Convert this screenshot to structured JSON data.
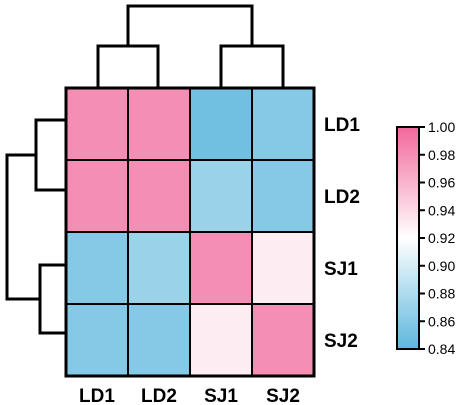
{
  "chart_data": {
    "type": "heatmap",
    "title": "",
    "rows": [
      "LD1",
      "LD2",
      "SJ1",
      "SJ2"
    ],
    "columns": [
      "LD1",
      "LD2",
      "SJ1",
      "SJ2"
    ],
    "values": [
      [
        0.98,
        0.98,
        0.85,
        0.86
      ],
      [
        0.98,
        0.98,
        0.87,
        0.86
      ],
      [
        0.86,
        0.87,
        0.98,
        0.93
      ],
      [
        0.86,
        0.86,
        0.93,
        0.98
      ]
    ],
    "colorbar": {
      "min": 0.84,
      "max": 1.0,
      "ticks": [
        "1.00",
        "0.98",
        "0.96",
        "0.94",
        "0.92",
        "0.90",
        "0.88",
        "0.86",
        "0.84"
      ],
      "colors": [
        "#5db7de",
        "#ffffff",
        "#f2689b"
      ]
    },
    "dendrograms": {
      "top": "columns clustered {LD1, LD2} and {SJ1, SJ2}",
      "left": "rows clustered {LD1, LD2} and {SJ1, SJ2}"
    }
  }
}
